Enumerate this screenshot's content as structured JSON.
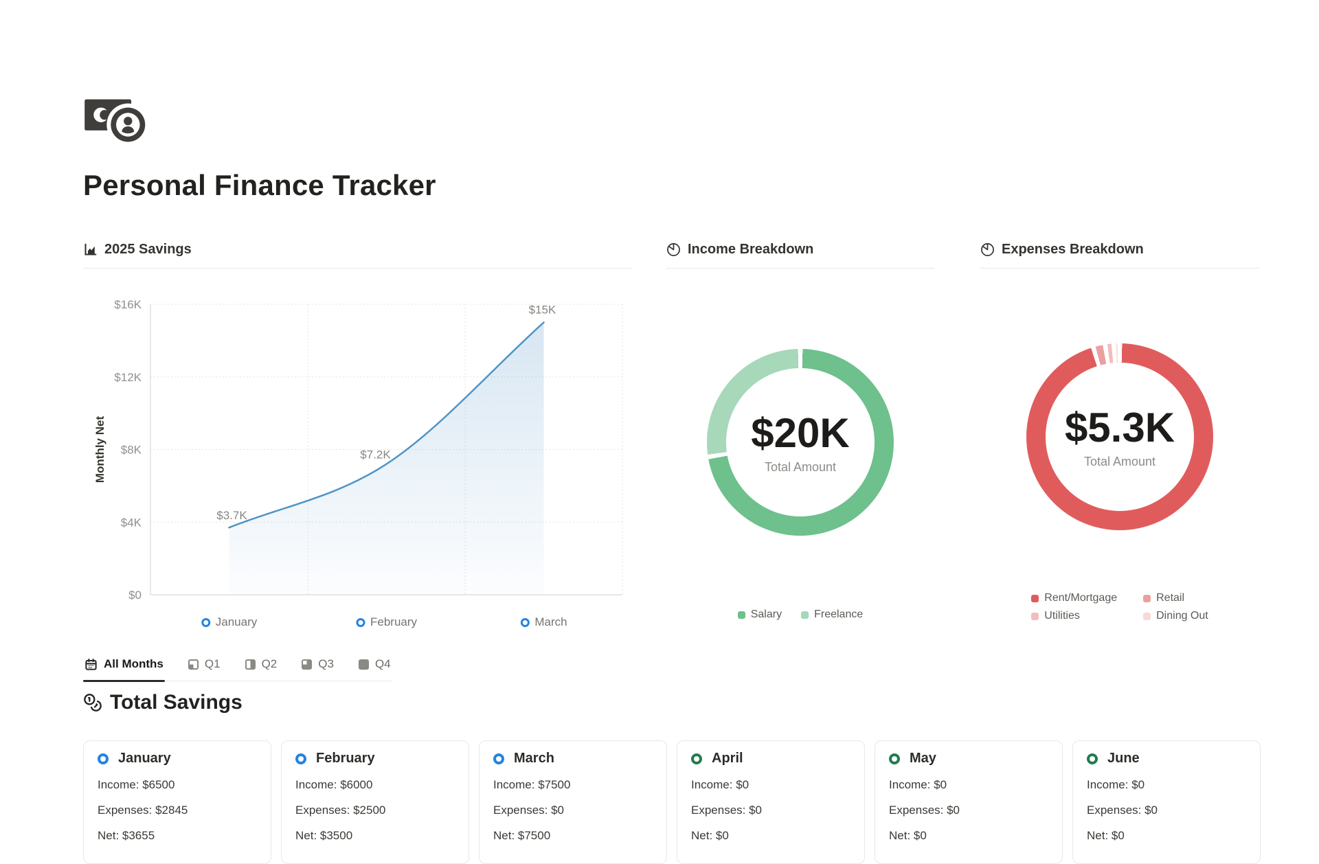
{
  "header": {
    "logo_icon": "banknote-coin-icon",
    "title": "Personal Finance Tracker"
  },
  "panels": {
    "savings": {
      "title": "2025 Savings",
      "icon": "area-chart-icon"
    },
    "income": {
      "title": "Income Breakdown",
      "icon": "pie-chart-icon",
      "center_value": "$20K",
      "center_label": "Total Amount"
    },
    "expenses": {
      "title": "Expenses Breakdown",
      "icon": "pie-chart-icon",
      "center_value": "$5.3K",
      "center_label": "Total Amount"
    }
  },
  "chart_data": [
    {
      "id": "savings_line",
      "type": "line",
      "title": "2025 Savings",
      "xlabel": "",
      "ylabel": "Monthly Net",
      "categories": [
        "January",
        "February",
        "March"
      ],
      "values": [
        3700,
        7200,
        15000
      ],
      "point_labels": [
        "$3.7K",
        "$7.2K",
        "$15K"
      ],
      "ylim": [
        0,
        16000
      ],
      "ytick_values": [
        16000,
        12000,
        8000,
        4000,
        0
      ],
      "ytick_labels": [
        "$16K",
        "$12K",
        "$8K",
        "$4K",
        "$0"
      ],
      "grid": "dotted",
      "line_color": "#4e94c6",
      "area_fill_color": "#5f9bcd",
      "marker_color": "#2383e2",
      "legend_position": "none"
    },
    {
      "id": "income_donut",
      "type": "pie",
      "title": "Income Breakdown",
      "total_label": "$20K",
      "total_value": 20000,
      "labels": [
        "Salary",
        "Freelance"
      ],
      "values": [
        14500,
        5500
      ],
      "colors": [
        "#6ec08c",
        "#a6d8b9"
      ],
      "legend_position": "bottom"
    },
    {
      "id": "expenses_donut",
      "type": "pie",
      "title": "Expenses Breakdown",
      "total_label": "$5.3K",
      "total_value": 5345,
      "labels": [
        "Rent/Mortgage",
        "Retail",
        "Utilities",
        "Dining Out"
      ],
      "values": [
        5100,
        110,
        80,
        55
      ],
      "colors": [
        "#e05c5c",
        "#eba0a0",
        "#f2bdbd",
        "#f8d9d9"
      ],
      "legend_position": "bottom"
    }
  ],
  "tabs": [
    {
      "label": "All Months",
      "icon": "calendar-icon",
      "active": true
    },
    {
      "label": "Q1",
      "icon": "quarter-1-icon",
      "active": false
    },
    {
      "label": "Q2",
      "icon": "quarter-2-icon",
      "active": false
    },
    {
      "label": "Q3",
      "icon": "quarter-3-icon",
      "active": false
    },
    {
      "label": "Q4",
      "icon": "quarter-4-icon",
      "active": false
    }
  ],
  "total_savings": {
    "title": "Total Savings",
    "icon": "coins-icon"
  },
  "cards": [
    {
      "month": "January",
      "dot_color": "#2383e2",
      "income": "Income: $6500",
      "expenses": "Expenses: $2845",
      "net": "Net: $3655"
    },
    {
      "month": "February",
      "dot_color": "#2383e2",
      "income": "Income: $6000",
      "expenses": "Expenses: $2500",
      "net": "Net: $3500"
    },
    {
      "month": "March",
      "dot_color": "#2383e2",
      "income": "Income: $7500",
      "expenses": "Expenses: $0",
      "net": "Net: $7500"
    },
    {
      "month": "April",
      "dot_color": "#217c4d",
      "income": "Income: $0",
      "expenses": "Expenses: $0",
      "net": "Net: $0"
    },
    {
      "month": "May",
      "dot_color": "#217c4d",
      "income": "Income: $0",
      "expenses": "Expenses: $0",
      "net": "Net: $0"
    },
    {
      "month": "June",
      "dot_color": "#217c4d",
      "income": "Income: $0",
      "expenses": "Expenses: $0",
      "net": "Net: $0"
    }
  ]
}
